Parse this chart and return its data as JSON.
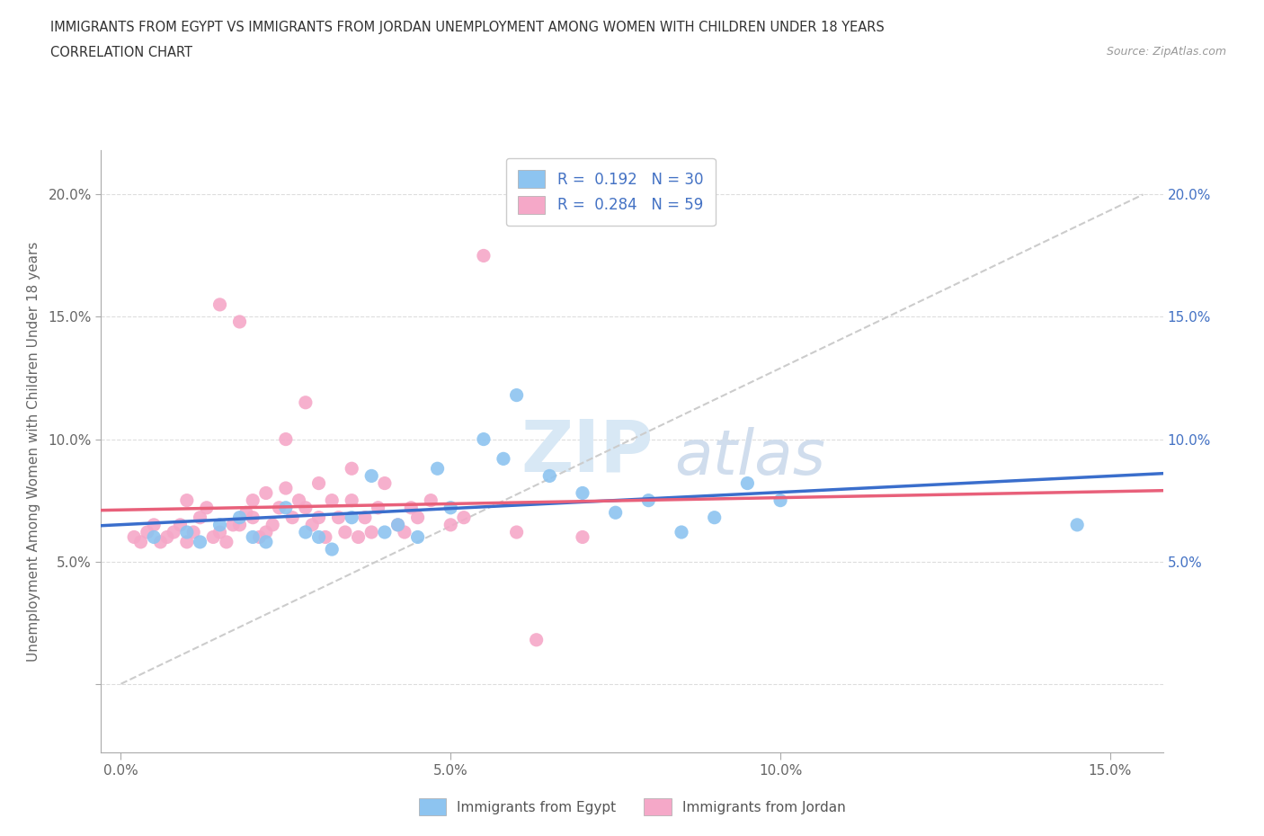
{
  "title_line1": "IMMIGRANTS FROM EGYPT VS IMMIGRANTS FROM JORDAN UNEMPLOYMENT AMONG WOMEN WITH CHILDREN UNDER 18 YEARS",
  "title_line2": "CORRELATION CHART",
  "source_text": "Source: ZipAtlas.com",
  "ylabel": "Unemployment Among Women with Children Under 18 years",
  "x_ticks": [
    0.0,
    0.05,
    0.1,
    0.15
  ],
  "x_tick_labels": [
    "0.0%",
    "5.0%",
    "10.0%",
    "15.0%"
  ],
  "y_ticks": [
    0.0,
    0.05,
    0.1,
    0.15,
    0.2
  ],
  "y_tick_labels_left": [
    "",
    "5.0%",
    "10.0%",
    "15.0%",
    "20.0%"
  ],
  "y_tick_labels_right": [
    "",
    "5.0%",
    "10.0%",
    "15.0%",
    "20.0%"
  ],
  "xlim": [
    -0.003,
    0.158
  ],
  "ylim": [
    -0.028,
    0.218
  ],
  "egypt_color": "#8DC4F0",
  "jordan_color": "#F5A8C8",
  "egypt_line_color": "#3A6ECC",
  "jordan_line_color": "#E8607A",
  "dashed_line_color": "#CCCCCC",
  "egypt_R": 0.192,
  "egypt_N": 30,
  "jordan_R": 0.284,
  "jordan_N": 59,
  "legend_label_egypt": "Immigrants from Egypt",
  "legend_label_jordan": "Immigrants from Jordan",
  "legend_text_color": "#4472C4",
  "egypt_x": [
    0.005,
    0.01,
    0.012,
    0.015,
    0.018,
    0.02,
    0.022,
    0.025,
    0.028,
    0.03,
    0.032,
    0.035,
    0.038,
    0.04,
    0.042,
    0.045,
    0.048,
    0.05,
    0.055,
    0.058,
    0.06,
    0.065,
    0.07,
    0.075,
    0.08,
    0.085,
    0.09,
    0.095,
    0.1,
    0.145
  ],
  "egypt_y": [
    0.06,
    0.062,
    0.058,
    0.065,
    0.068,
    0.06,
    0.058,
    0.072,
    0.062,
    0.06,
    0.055,
    0.068,
    0.085,
    0.062,
    0.065,
    0.06,
    0.088,
    0.072,
    0.1,
    0.092,
    0.118,
    0.085,
    0.078,
    0.07,
    0.075,
    0.062,
    0.068,
    0.082,
    0.075,
    0.065
  ],
  "jordan_x": [
    0.002,
    0.003,
    0.004,
    0.005,
    0.006,
    0.007,
    0.008,
    0.009,
    0.01,
    0.01,
    0.011,
    0.012,
    0.013,
    0.014,
    0.015,
    0.015,
    0.016,
    0.017,
    0.018,
    0.018,
    0.019,
    0.02,
    0.02,
    0.021,
    0.022,
    0.022,
    0.023,
    0.024,
    0.025,
    0.025,
    0.026,
    0.027,
    0.028,
    0.028,
    0.029,
    0.03,
    0.03,
    0.031,
    0.032,
    0.033,
    0.034,
    0.035,
    0.035,
    0.036,
    0.037,
    0.038,
    0.039,
    0.04,
    0.042,
    0.043,
    0.044,
    0.045,
    0.047,
    0.05,
    0.052,
    0.055,
    0.06,
    0.063,
    0.07
  ],
  "jordan_y": [
    0.06,
    0.058,
    0.062,
    0.065,
    0.058,
    0.06,
    0.062,
    0.065,
    0.058,
    0.075,
    0.062,
    0.068,
    0.072,
    0.06,
    0.062,
    0.155,
    0.058,
    0.065,
    0.065,
    0.148,
    0.07,
    0.068,
    0.075,
    0.06,
    0.062,
    0.078,
    0.065,
    0.072,
    0.08,
    0.1,
    0.068,
    0.075,
    0.072,
    0.115,
    0.065,
    0.068,
    0.082,
    0.06,
    0.075,
    0.068,
    0.062,
    0.075,
    0.088,
    0.06,
    0.068,
    0.062,
    0.072,
    0.082,
    0.065,
    0.062,
    0.072,
    0.068,
    0.075,
    0.065,
    0.068,
    0.175,
    0.062,
    0.018,
    0.06
  ]
}
